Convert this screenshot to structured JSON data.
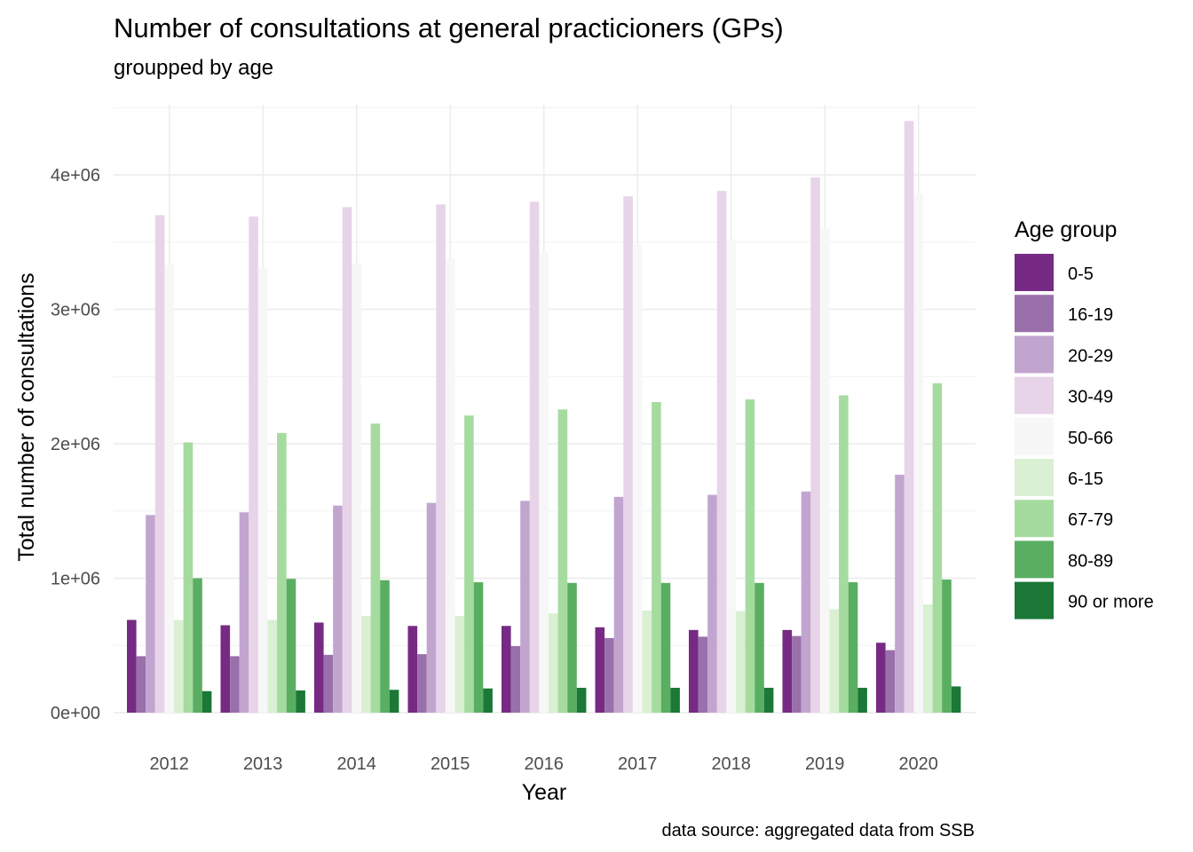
{
  "chart_data": {
    "type": "bar",
    "title": "Number of consultations at general practicioners (GPs)",
    "subtitle": "groupped by age",
    "xlabel": "Year",
    "ylabel": "Total number of  consultations",
    "caption": "data source: aggregated data from SSB",
    "ylim": [
      0,
      4500000
    ],
    "yticks": [
      0,
      1000000,
      2000000,
      3000000,
      4000000
    ],
    "ytick_labels": [
      "0e+00",
      "1e+06",
      "2e+06",
      "3e+06",
      "4e+06"
    ],
    "grid": true,
    "legend": {
      "title": "Age group",
      "position": "right"
    },
    "categories": [
      "2012",
      "2013",
      "2014",
      "2015",
      "2016",
      "2017",
      "2018",
      "2019",
      "2020"
    ],
    "series": [
      {
        "name": "0-5",
        "color": "#762a83",
        "values": [
          690000,
          650000,
          670000,
          645000,
          645000,
          635000,
          615000,
          615000,
          520000
        ]
      },
      {
        "name": "16-19",
        "color": "#9970ab",
        "values": [
          420000,
          420000,
          430000,
          435000,
          495000,
          555000,
          565000,
          570000,
          465000
        ]
      },
      {
        "name": "20-29",
        "color": "#c2a5cf",
        "values": [
          1470000,
          1490000,
          1540000,
          1560000,
          1575000,
          1605000,
          1620000,
          1645000,
          1770000
        ]
      },
      {
        "name": "30-49",
        "color": "#e7d4e8",
        "values": [
          3700000,
          3690000,
          3760000,
          3780000,
          3800000,
          3840000,
          3880000,
          3980000,
          4400000
        ]
      },
      {
        "name": "50-66",
        "color": "#f7f7f7",
        "values": [
          3330000,
          3310000,
          3340000,
          3380000,
          3420000,
          3480000,
          3520000,
          3600000,
          3860000
        ]
      },
      {
        "name": "6-15",
        "color": "#d9f0d3",
        "values": [
          690000,
          690000,
          720000,
          720000,
          740000,
          760000,
          755000,
          770000,
          805000
        ]
      },
      {
        "name": "67-79",
        "color": "#a6dba0",
        "values": [
          2010000,
          2080000,
          2150000,
          2210000,
          2255000,
          2310000,
          2330000,
          2360000,
          2450000
        ]
      },
      {
        "name": "80-89",
        "color": "#5aae61",
        "values": [
          1000000,
          995000,
          985000,
          970000,
          965000,
          965000,
          965000,
          970000,
          990000
        ]
      },
      {
        "name": "90 or more",
        "color": "#1b7837",
        "values": [
          160000,
          165000,
          170000,
          180000,
          185000,
          185000,
          185000,
          185000,
          195000
        ]
      }
    ]
  }
}
